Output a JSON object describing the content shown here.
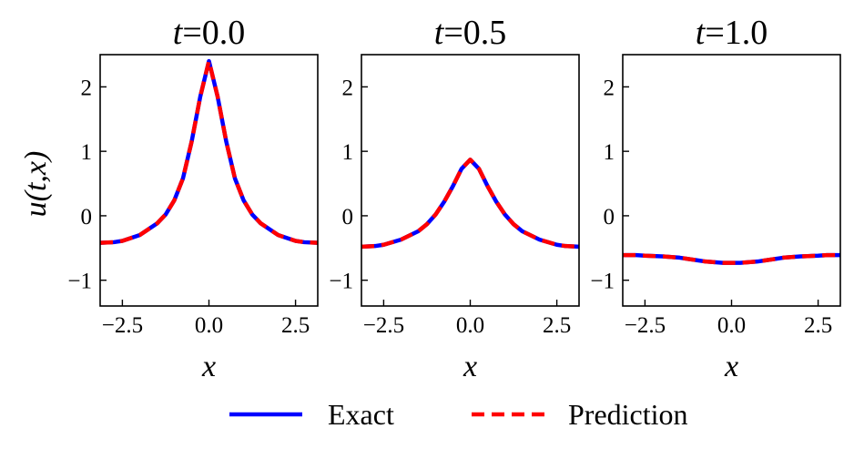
{
  "chart_data": [
    {
      "type": "line",
      "title": "t = 0.0",
      "title_var": "t",
      "title_val": "0.0",
      "xlabel": "x",
      "ylabel": "u(t,x)",
      "xlim": [
        -3.1416,
        3.1416
      ],
      "ylim": [
        -1.4,
        2.5
      ],
      "xticks": [
        -2.5,
        0.0,
        2.5
      ],
      "xtick_labels": [
        "−2.5",
        "0.0",
        "2.5"
      ],
      "yticks": [
        -1,
        0,
        1,
        2
      ],
      "ytick_labels": [
        "−1",
        "0",
        "1",
        "2"
      ],
      "x": [
        -3.14,
        -2.75,
        -2.5,
        -2.0,
        -1.5,
        -1.25,
        -1.0,
        -0.75,
        -0.5,
        -0.25,
        0.0,
        0.25,
        0.5,
        0.75,
        1.0,
        1.25,
        1.5,
        2.0,
        2.5,
        2.75,
        3.14
      ],
      "series": [
        {
          "name": "Exact",
          "values": [
            -0.42,
            -0.41,
            -0.39,
            -0.3,
            -0.12,
            0.02,
            0.24,
            0.58,
            1.15,
            1.85,
            2.4,
            1.85,
            1.15,
            0.58,
            0.24,
            0.02,
            -0.12,
            -0.3,
            -0.39,
            -0.41,
            -0.42
          ]
        },
        {
          "name": "Prediction",
          "values": [
            -0.42,
            -0.41,
            -0.39,
            -0.3,
            -0.12,
            0.02,
            0.24,
            0.58,
            1.15,
            1.85,
            2.4,
            1.85,
            1.15,
            0.58,
            0.24,
            0.02,
            -0.12,
            -0.3,
            -0.39,
            -0.41,
            -0.42
          ]
        }
      ]
    },
    {
      "type": "line",
      "title": "t = 0.5",
      "title_var": "t",
      "title_val": "0.5",
      "xlabel": "x",
      "ylabel": "",
      "xlim": [
        -3.1416,
        3.1416
      ],
      "ylim": [
        -1.4,
        2.5
      ],
      "xticks": [
        -2.5,
        0.0,
        2.5
      ],
      "xtick_labels": [
        "−2.5",
        "0.0",
        "2.5"
      ],
      "yticks": [
        -1,
        0,
        1,
        2
      ],
      "ytick_labels": [
        "−1",
        "0",
        "1",
        "2"
      ],
      "x": [
        -3.14,
        -2.75,
        -2.5,
        -2.0,
        -1.5,
        -1.25,
        -1.0,
        -0.75,
        -0.5,
        -0.25,
        0.0,
        0.25,
        0.5,
        0.75,
        1.0,
        1.25,
        1.5,
        2.0,
        2.5,
        2.75,
        3.14
      ],
      "series": [
        {
          "name": "Exact",
          "values": [
            -0.48,
            -0.47,
            -0.45,
            -0.37,
            -0.24,
            -0.13,
            0.02,
            0.22,
            0.46,
            0.73,
            0.87,
            0.73,
            0.46,
            0.22,
            0.02,
            -0.13,
            -0.24,
            -0.37,
            -0.45,
            -0.47,
            -0.48
          ]
        },
        {
          "name": "Prediction",
          "values": [
            -0.48,
            -0.47,
            -0.45,
            -0.37,
            -0.24,
            -0.13,
            0.02,
            0.22,
            0.46,
            0.73,
            0.87,
            0.73,
            0.46,
            0.22,
            0.02,
            -0.13,
            -0.24,
            -0.37,
            -0.45,
            -0.47,
            -0.48
          ]
        }
      ]
    },
    {
      "type": "line",
      "title": "t = 1.0",
      "title_var": "t",
      "title_val": "1.0",
      "xlabel": "x",
      "ylabel": "",
      "xlim": [
        -3.1416,
        3.1416
      ],
      "ylim": [
        -1.4,
        2.5
      ],
      "xticks": [
        -2.5,
        0.0,
        2.5
      ],
      "xtick_labels": [
        "−2.5",
        "0.0",
        "2.5"
      ],
      "yticks": [
        -1,
        0,
        1,
        2
      ],
      "ytick_labels": [
        "−1",
        "0",
        "1",
        "2"
      ],
      "x": [
        -3.14,
        -2.75,
        -2.5,
        -2.0,
        -1.5,
        -1.25,
        -1.0,
        -0.75,
        -0.5,
        -0.25,
        0.0,
        0.25,
        0.5,
        0.75,
        1.0,
        1.25,
        1.5,
        2.0,
        2.5,
        2.75,
        3.14
      ],
      "series": [
        {
          "name": "Exact",
          "values": [
            -0.61,
            -0.61,
            -0.62,
            -0.63,
            -0.65,
            -0.67,
            -0.69,
            -0.71,
            -0.72,
            -0.73,
            -0.73,
            -0.73,
            -0.72,
            -0.71,
            -0.69,
            -0.67,
            -0.65,
            -0.63,
            -0.62,
            -0.61,
            -0.61
          ]
        },
        {
          "name": "Prediction",
          "values": [
            -0.61,
            -0.61,
            -0.62,
            -0.63,
            -0.65,
            -0.67,
            -0.69,
            -0.71,
            -0.72,
            -0.73,
            -0.73,
            -0.73,
            -0.72,
            -0.71,
            -0.69,
            -0.67,
            -0.65,
            -0.63,
            -0.62,
            -0.61,
            -0.61
          ]
        }
      ]
    }
  ],
  "legend": {
    "placement": "bottom-center",
    "items": [
      {
        "label": "Exact",
        "color": "#0000ff",
        "style": "solid"
      },
      {
        "label": "Prediction",
        "color": "#ff0000",
        "style": "dashed"
      }
    ]
  },
  "colors": {
    "exact": "#0000ff",
    "prediction": "#ff0000",
    "axes": "#000000"
  }
}
